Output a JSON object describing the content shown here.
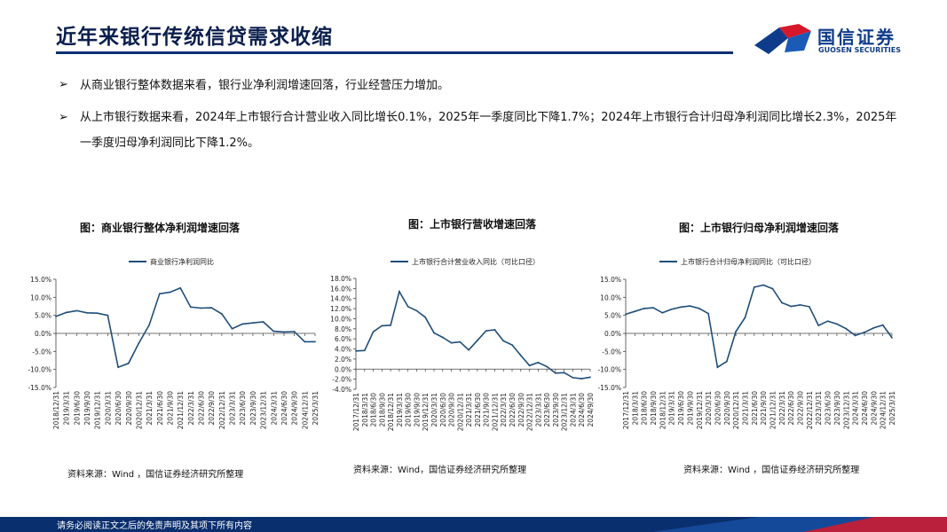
{
  "header": {
    "title": "近年来银行传统信贷需求收缩",
    "logo_cn": "国信证券",
    "logo_en": "GUOSEN SECURITIES"
  },
  "bullets": [
    {
      "symbol": "➢",
      "text": "从商业银行整体数据来看，银行业净利润增速回落，行业经营压力增加。"
    },
    {
      "symbol": "➢",
      "text": "从上市银行数据来看，2024年上市银行合计营业收入同比增长0.1%，2025年一季度同比下降1.7%；2024年上市银行合计归母净利润同比增长2.3%，2025年一季度归母净利润同比下降1.2%。"
    }
  ],
  "footer": {
    "text": "请务必阅读正文之后的免责声明及其项下所有内容"
  },
  "colors": {
    "navy": "#0b2e73",
    "line": "#1f4e79",
    "red": "#d7182a"
  },
  "chart_data": [
    {
      "type": "line",
      "title": "图：商业银行整体净利润增速回落",
      "source": "资料来源：Wind ，国信证券经济研究所整理",
      "legend": "商业银行净利润同比",
      "ylim": [
        -15,
        15
      ],
      "yticks": [
        -15,
        -10,
        -5,
        0,
        5,
        10,
        15
      ],
      "ytick_labels": [
        "-15.0%",
        "-10.0%",
        "-5.0%",
        "0.0%",
        "5.0%",
        "10.0%",
        "15.0%"
      ],
      "xtick_labels": [
        "2018/12/31",
        "2019/3/31",
        "2019/6/30",
        "2019/9/30",
        "2019/12/31",
        "2020/3/31",
        "2020/6/30",
        "2020/9/30",
        "2020/12/31",
        "2021/3/31",
        "2021/6/30",
        "2021/9/30",
        "2021/12/31",
        "2022/3/31",
        "2022/6/30",
        "2022/9/30",
        "2022/12/31",
        "2023/3/31",
        "2023/6/30",
        "2023/9/30",
        "2023/12/31",
        "2024/3/31",
        "2024/6/30",
        "2024/9/30",
        "2024/12/31",
        "2025/3/31"
      ],
      "values": [
        4.7,
        5.8,
        6.3,
        5.7,
        5.6,
        5.0,
        -9.4,
        -8.3,
        -2.7,
        2.3,
        11.0,
        11.4,
        12.6,
        7.3,
        7.0,
        7.1,
        5.4,
        1.3,
        2.6,
        2.9,
        3.2,
        0.6,
        0.4,
        0.5,
        -2.3,
        -2.3
      ]
    },
    {
      "type": "line",
      "title": "图：上市银行营收增速回落",
      "source": "资料来源：Wind，国信证券经济研究所整理",
      "legend": "上市银行合计营业收入同比（可比口径）",
      "ylim": [
        -4,
        18
      ],
      "yticks": [
        -4,
        -2,
        0,
        2,
        4,
        6,
        8,
        10,
        12,
        14,
        16,
        18
      ],
      "ytick_labels": [
        "-4.0%",
        "-2.0%",
        "0.0%",
        "2.0%",
        "4.0%",
        "6.0%",
        "8.0%",
        "10.0%",
        "12.0%",
        "14.0%",
        "16.0%",
        "18.0%"
      ],
      "xtick_labels": [
        "2017/12/31",
        "2018/3/31",
        "2018/6/30",
        "2018/9/30",
        "2018/12/31",
        "2019/3/31",
        "2019/6/30",
        "2019/9/30",
        "2019/12/31",
        "2020/3/31",
        "2020/6/30",
        "2020/9/30",
        "2020/12/31",
        "2021/3/31",
        "2021/6/30",
        "2021/9/30",
        "2021/12/31",
        "2022/3/31",
        "2022/6/30",
        "2022/9/30",
        "2022/12/31",
        "2023/3/31",
        "2023/6/30",
        "2023/9/30",
        "2023/12/31",
        "2024/3/31",
        "2024/6/30",
        "2024/9/30"
      ],
      "values": [
        3.6,
        3.7,
        7.4,
        8.6,
        8.7,
        15.4,
        12.4,
        11.6,
        10.3,
        7.2,
        6.3,
        5.2,
        5.4,
        3.8,
        5.7,
        7.6,
        7.8,
        5.6,
        4.8,
        2.7,
        0.7,
        1.3,
        0.5,
        -0.8,
        -0.7,
        -1.7,
        -1.9,
        -1.6
      ]
    },
    {
      "type": "line",
      "title": "图：上市银行归母净利润增速回落",
      "source": "资料来源：Wind ，国信证券经济研究所整理",
      "legend": "上市银行合计归母净利润同比（可比口径）",
      "ylim": [
        -15,
        15
      ],
      "yticks": [
        -15,
        -10,
        -5,
        0,
        5,
        10,
        15
      ],
      "ytick_labels": [
        "-15.0%",
        "-10.0%",
        "-5.0%",
        "0.0%",
        "5.0%",
        "10.0%",
        "15.0%"
      ],
      "xtick_labels": [
        "2017/12/31",
        "2018/3/31",
        "2018/6/30",
        "2018/9/30",
        "2018/12/31",
        "2019/3/31",
        "2019/6/30",
        "2019/9/30",
        "2019/12/31",
        "2020/3/31",
        "2020/6/30",
        "2020/9/30",
        "2020/12/31",
        "2021/3/31",
        "2021/6/30",
        "2021/9/30",
        "2021/12/31",
        "2022/3/31",
        "2022/6/30",
        "2022/9/30",
        "2022/12/31",
        "2023/3/31",
        "2023/6/30",
        "2023/9/30",
        "2023/12/31",
        "2024/3/31",
        "2024/6/30",
        "2024/9/30",
        "2024/12/31",
        "2025/3/31"
      ],
      "values": [
        5.3,
        6.1,
        6.9,
        7.1,
        5.7,
        6.7,
        7.3,
        7.6,
        6.9,
        5.5,
        -9.4,
        -7.8,
        0.5,
        4.4,
        12.8,
        13.4,
        12.4,
        8.5,
        7.5,
        7.9,
        7.4,
        2.2,
        3.4,
        2.6,
        1.3,
        -0.6,
        0.3,
        1.5,
        2.3,
        -1.2
      ]
    }
  ]
}
